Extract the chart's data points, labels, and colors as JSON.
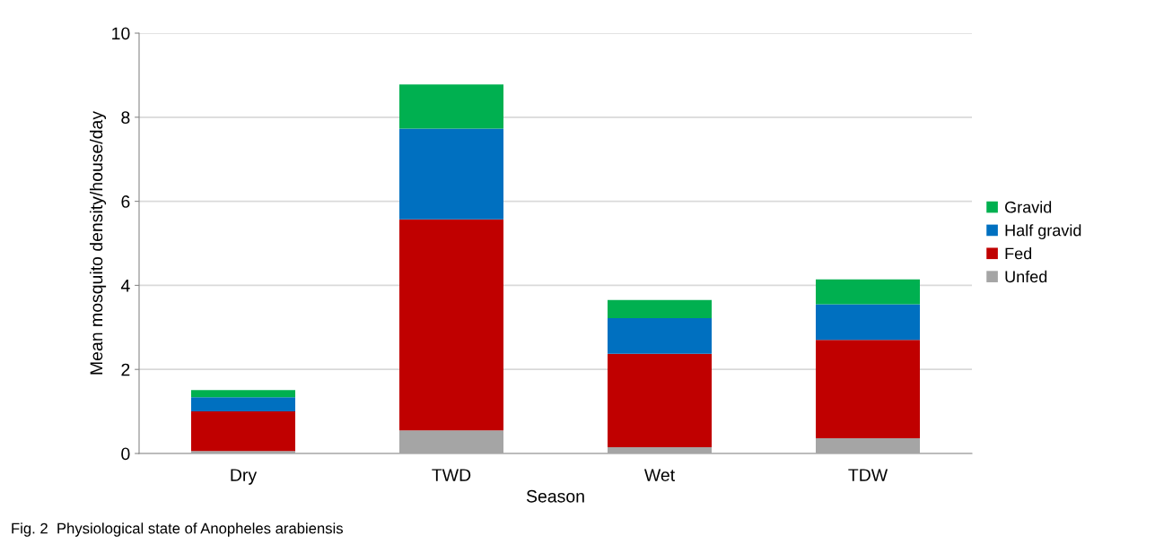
{
  "chart_data": {
    "type": "bar",
    "stacked": true,
    "xlabel": "Season",
    "ylabel": "Mean mosquito density/house/day",
    "categories": [
      "Dry",
      "TWD",
      "Wet",
      "TDW"
    ],
    "series": [
      {
        "name": "Unfed",
        "color": "#a5a5a5",
        "values": [
          0.06,
          0.55,
          0.15,
          0.36
        ]
      },
      {
        "name": "Fed",
        "color": "#c00000",
        "values": [
          0.94,
          5.02,
          2.22,
          2.34
        ]
      },
      {
        "name": "Half gravid",
        "color": "#0070c0",
        "values": [
          0.34,
          2.16,
          0.85,
          0.85
        ]
      },
      {
        "name": "Gravid",
        "color": "#00b050",
        "values": [
          0.17,
          1.05,
          0.43,
          0.59
        ]
      }
    ],
    "ylim": [
      0,
      10
    ],
    "yticks": [
      0,
      2,
      4,
      6,
      8,
      10
    ],
    "grid": "y",
    "legend": "right",
    "annotations": [
      "Fig. 2  Physiological state of Anopheles arabiensis"
    ]
  }
}
